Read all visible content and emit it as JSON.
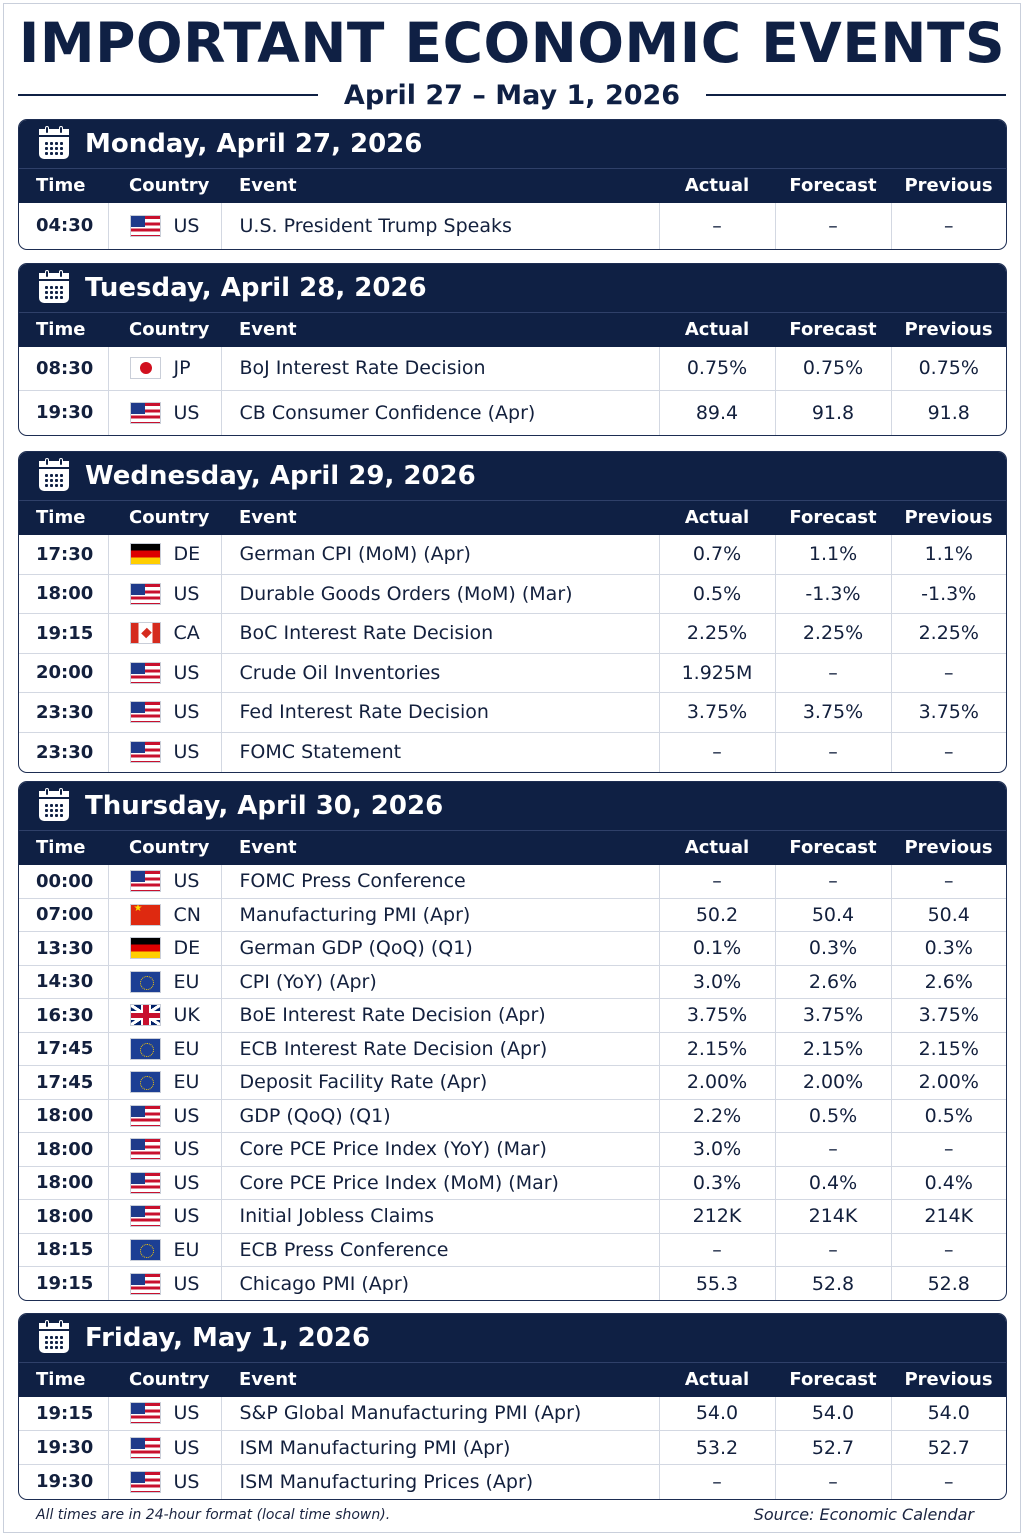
{
  "title": "IMPORTANT ECONOMIC EVENTS",
  "subtitle": "April 27 – May 1, 2026",
  "columns": {
    "time": "Time",
    "country": "Country",
    "event": "Event",
    "actual": "Actual",
    "forecast": "Forecast",
    "previous": "Previous"
  },
  "days": [
    {
      "title": "Monday, April 27, 2026",
      "rows": [
        {
          "time": "04:30",
          "country": "US",
          "event": "U.S. President Trump Speaks",
          "actual": "–",
          "forecast": "–",
          "previous": "–"
        }
      ]
    },
    {
      "title": "Tuesday, April 28, 2026",
      "rows": [
        {
          "time": "08:30",
          "country": "JP",
          "event": "BoJ Interest Rate Decision",
          "actual": "0.75%",
          "forecast": "0.75%",
          "previous": "0.75%"
        },
        {
          "time": "19:30",
          "country": "US",
          "event": "CB Consumer Confidence (Apr)",
          "actual": "89.4",
          "forecast": "91.8",
          "previous": "91.8"
        }
      ]
    },
    {
      "title": "Wednesday, April 29, 2026",
      "rows": [
        {
          "time": "17:30",
          "country": "DE",
          "event": "German CPI (MoM) (Apr)",
          "actual": "0.7%",
          "forecast": "1.1%",
          "previous": "1.1%"
        },
        {
          "time": "18:00",
          "country": "US",
          "event": "Durable Goods Orders (MoM) (Mar)",
          "actual": "0.5%",
          "forecast": "-1.3%",
          "previous": "-1.3%"
        },
        {
          "time": "19:15",
          "country": "CA",
          "event": "BoC Interest Rate Decision",
          "actual": "2.25%",
          "forecast": "2.25%",
          "previous": "2.25%"
        },
        {
          "time": "20:00",
          "country": "US",
          "event": "Crude Oil Inventories",
          "actual": "1.925M",
          "forecast": "–",
          "previous": "–"
        },
        {
          "time": "23:30",
          "country": "US",
          "event": "Fed Interest Rate Decision",
          "actual": "3.75%",
          "forecast": "3.75%",
          "previous": "3.75%"
        },
        {
          "time": "23:30",
          "country": "US",
          "event": "FOMC Statement",
          "actual": "–",
          "forecast": "–",
          "previous": "–"
        }
      ]
    },
    {
      "title": "Thursday, April 30, 2026",
      "rows": [
        {
          "time": "00:00",
          "country": "US",
          "event": "FOMC Press Conference",
          "actual": "–",
          "forecast": "–",
          "previous": "–"
        },
        {
          "time": "07:00",
          "country": "CN",
          "event": "Manufacturing PMI  (Apr)",
          "actual": "50.2",
          "forecast": "50.4",
          "previous": "50.4"
        },
        {
          "time": "13:30",
          "country": "DE",
          "event": "German GDP (QoQ) (Q1)",
          "actual": "0.1%",
          "forecast": "0.3%",
          "previous": "0.3%"
        },
        {
          "time": "14:30",
          "country": "EU",
          "event": "CPI (YoY) (Apr)",
          "actual": "3.0%",
          "forecast": "2.6%",
          "previous": "2.6%"
        },
        {
          "time": "16:30",
          "country": "UK",
          "event": "BoE Interest Rate Decision (Apr)",
          "actual": "3.75%",
          "forecast": "3.75%",
          "previous": "3.75%"
        },
        {
          "time": "17:45",
          "country": "EU",
          "event": "ECB Interest Rate Decision  (Apr)",
          "actual": "2.15%",
          "forecast": "2.15%",
          "previous": "2.15%"
        },
        {
          "time": "17:45",
          "country": "EU",
          "event": "Deposit Facility Rate  (Apr)",
          "actual": "2.00%",
          "forecast": "2.00%",
          "previous": "2.00%"
        },
        {
          "time": "18:00",
          "country": "US",
          "event": "GDP (QoQ) (Q1)",
          "actual": "2.2%",
          "forecast": "0.5%",
          "previous": "0.5%"
        },
        {
          "time": "18:00",
          "country": "US",
          "event": "Core PCE Price Index (YoY) (Mar)",
          "actual": "3.0%",
          "forecast": "–",
          "previous": "–"
        },
        {
          "time": "18:00",
          "country": "US",
          "event": "Core PCE Price Index (MoM) (Mar)",
          "actual": "0.3%",
          "forecast": "0.4%",
          "previous": "0.4%"
        },
        {
          "time": "18:00",
          "country": "US",
          "event": "Initial Jobless Claims",
          "actual": "212K",
          "forecast": "214K",
          "previous": "214K"
        },
        {
          "time": "18:15",
          "country": "EU",
          "event": "ECB Press Conference",
          "actual": "–",
          "forecast": "–",
          "previous": "–"
        },
        {
          "time": "19:15",
          "country": "US",
          "event": "Chicago PMI  (Apr)",
          "actual": "55.3",
          "forecast": "52.8",
          "previous": "52.8"
        }
      ]
    },
    {
      "title": "Friday, May 1, 2026",
      "rows": [
        {
          "time": "19:15",
          "country": "US",
          "event": "S&P Global Manufacturing PMI  (Apr)",
          "actual": "54.0",
          "forecast": "54.0",
          "previous": "54.0"
        },
        {
          "time": "19:30",
          "country": "US",
          "event": "ISM Manufacturing PMI  (Apr)",
          "actual": "53.2",
          "forecast": "52.7",
          "previous": "52.7"
        },
        {
          "time": "19:30",
          "country": "US",
          "event": "ISM Manufacturing Prices  (Apr)",
          "actual": "–",
          "forecast": "–",
          "previous": "–"
        }
      ]
    }
  ],
  "footer": {
    "note": "All times are in 24-hour format (local time shown).",
    "source": "Source: Economic Calendar"
  }
}
